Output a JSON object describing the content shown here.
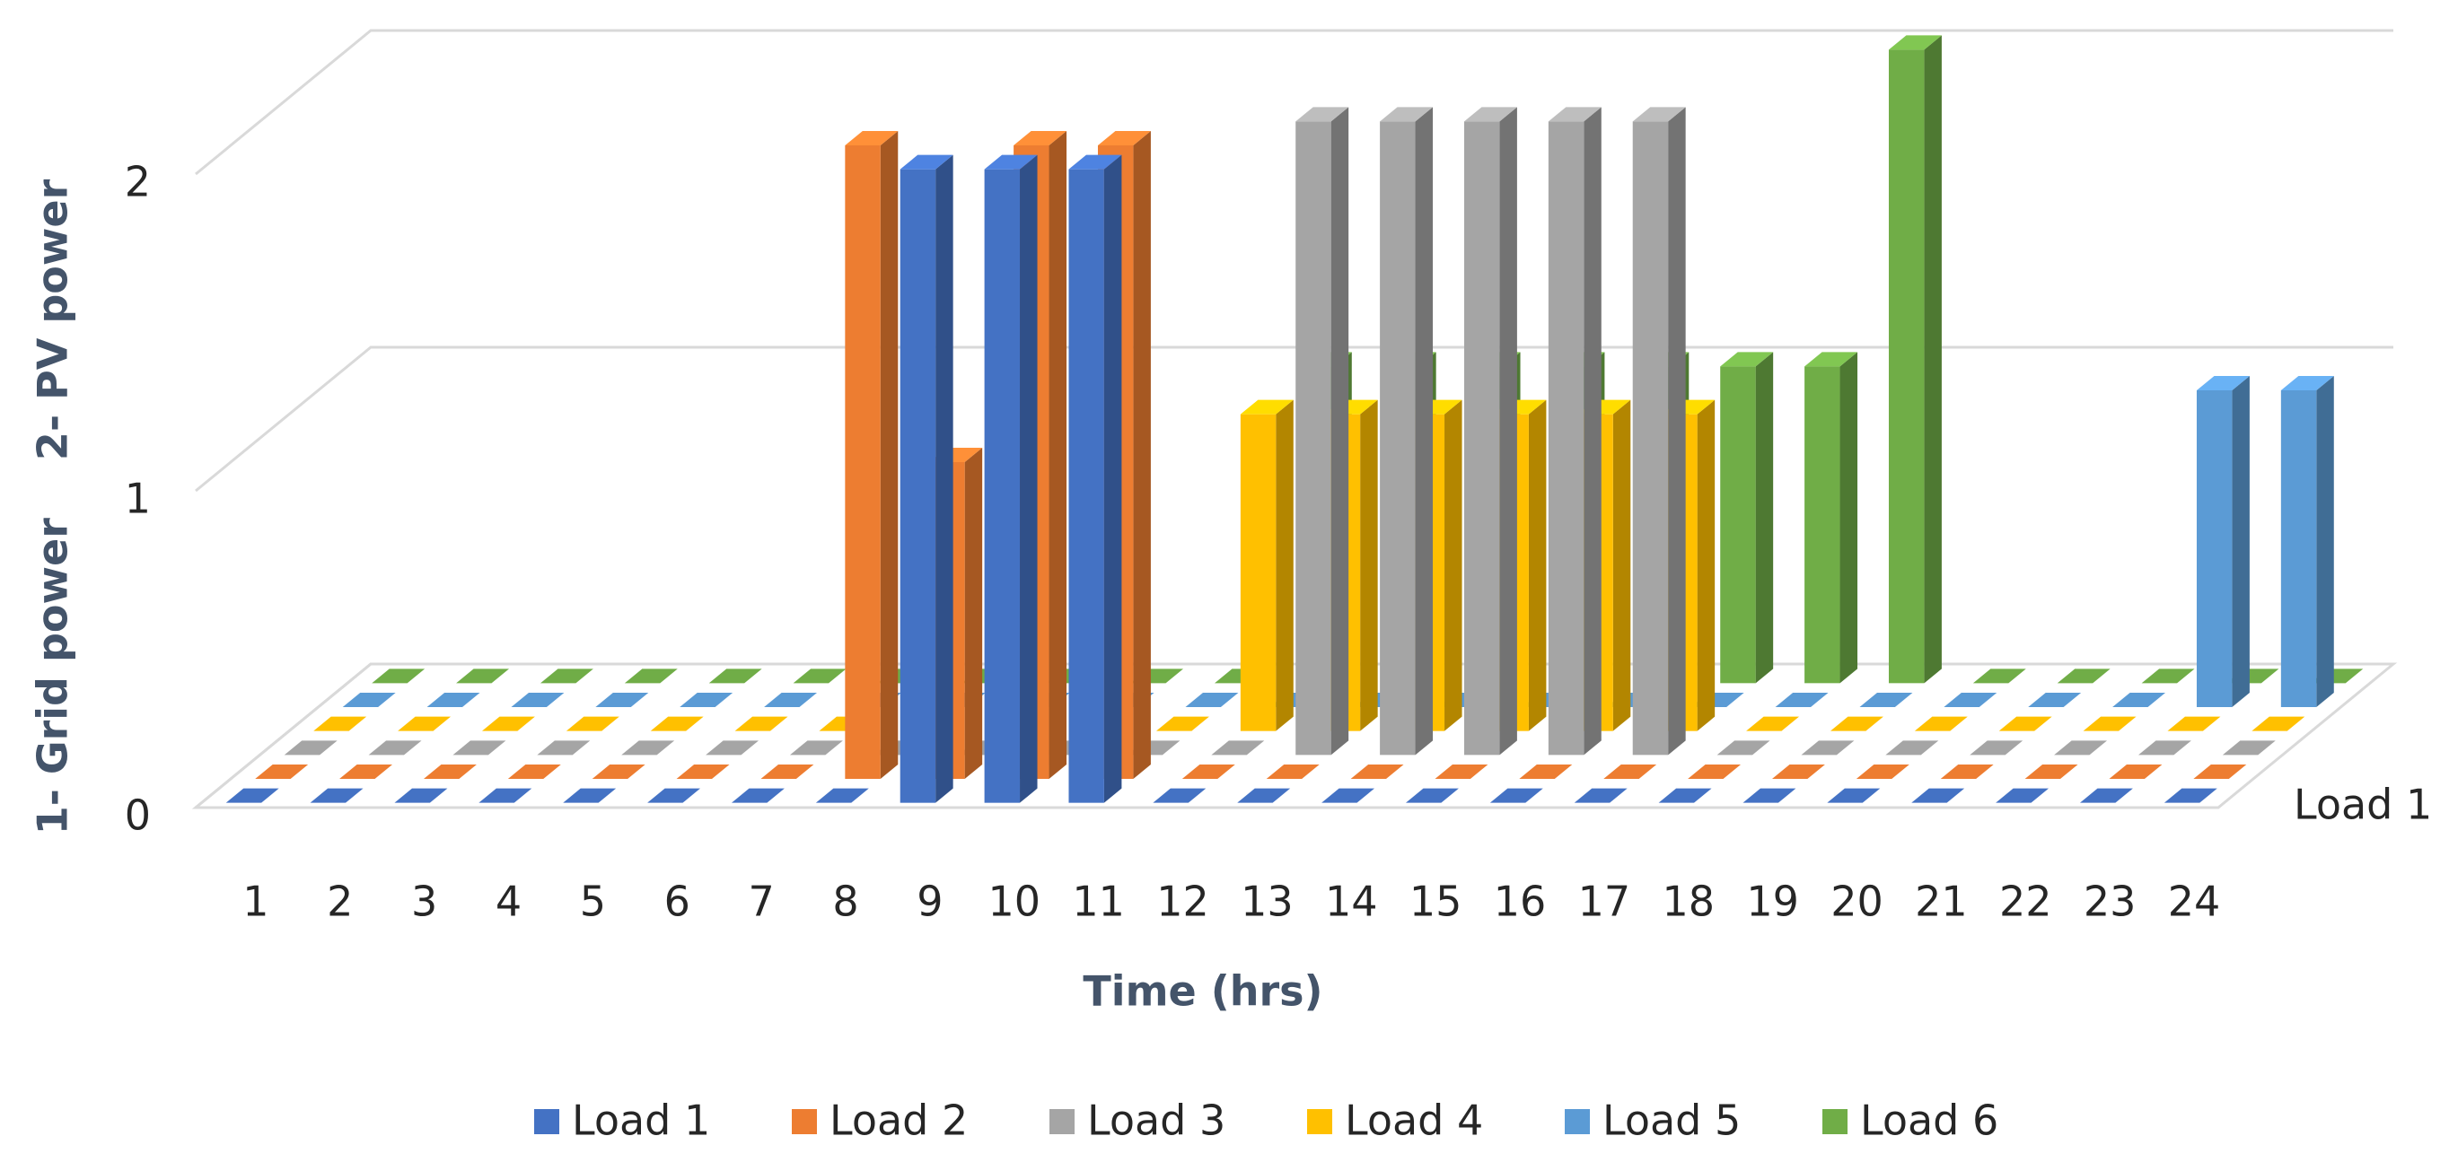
{
  "chart_data": {
    "type": "bar3d",
    "x_label": "Time (hrs)",
    "y_label": "1- Grid power    2- PV power",
    "categories": [
      "1",
      "2",
      "3",
      "4",
      "5",
      "6",
      "7",
      "8",
      "9",
      "10",
      "11",
      "12",
      "13",
      "14",
      "15",
      "16",
      "17",
      "18",
      "19",
      "20",
      "21",
      "22",
      "23",
      "24"
    ],
    "series": [
      {
        "name": "Load 1",
        "color": "#4472c4",
        "values": [
          0,
          0,
          0,
          0,
          0,
          0,
          0,
          0,
          2,
          2,
          2,
          0,
          0,
          0,
          0,
          0,
          0,
          0,
          0,
          0,
          0,
          0,
          0,
          0
        ]
      },
      {
        "name": "Load 2",
        "color": "#ed7d31",
        "values": [
          0,
          0,
          0,
          0,
          0,
          0,
          0,
          2,
          1,
          2,
          2,
          0,
          0,
          0,
          0,
          0,
          0,
          0,
          0,
          0,
          0,
          0,
          0,
          0
        ]
      },
      {
        "name": "Load 3",
        "color": "#a5a5a5",
        "values": [
          0,
          0,
          0,
          0,
          0,
          0,
          0,
          0,
          0,
          0,
          0,
          0,
          2,
          2,
          2,
          2,
          2,
          0,
          0,
          0,
          0,
          0,
          0,
          0
        ]
      },
      {
        "name": "Load 4",
        "color": "#ffc000",
        "values": [
          0,
          0,
          0,
          0,
          0,
          0,
          0,
          0,
          0,
          0,
          0,
          1,
          1,
          1,
          1,
          1,
          1,
          0,
          0,
          0,
          0,
          0,
          0,
          0
        ]
      },
      {
        "name": "Load 5",
        "color": "#5b9bd5",
        "values": [
          0,
          0,
          0,
          0,
          0,
          0,
          0,
          0,
          0,
          0,
          0,
          0,
          0,
          0,
          0,
          0,
          0,
          0,
          0,
          0,
          0,
          0,
          1,
          1
        ]
      },
      {
        "name": "Load 6",
        "color": "#70ad47",
        "values": [
          0,
          0,
          0,
          0,
          0,
          0,
          0,
          0,
          0,
          0,
          0,
          1,
          1,
          1,
          1,
          1,
          1,
          1,
          2,
          0,
          0,
          0,
          0,
          0
        ]
      }
    ],
    "series_axis_labels": [
      "Load 1"
    ],
    "ylim": [
      0,
      2
    ],
    "yticks": [
      0,
      1,
      2
    ],
    "grid": true,
    "legend": "bottom"
  }
}
